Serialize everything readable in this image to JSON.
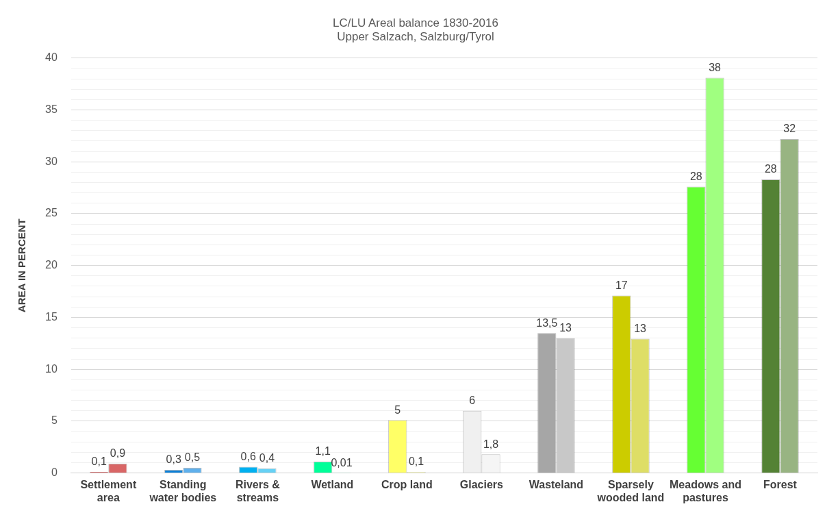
{
  "chart_data": {
    "type": "bar",
    "title": "LC/LU Areal balance 1830-2016",
    "subtitle": "Upper Salzach, Salzburg/Tyrol",
    "ylabel": "AREA IN PERCENT",
    "categories": [
      "Settlement area",
      "Standing water bodies",
      "Rivers & streams",
      "Wetland",
      "Crop land",
      "Glaciers",
      "Wasteland",
      "Sparsely wooded land",
      "Meadows and pastures",
      "Forest"
    ],
    "series": [
      {
        "colors": [
          "#c00000",
          "#0a7fd8",
          "#00b0f0",
          "#00ff99",
          "#ffff66",
          "#f0f0f0",
          "#a6a6a6",
          "#cccc00",
          "#66ff33",
          "#548235"
        ],
        "values": [
          0.1,
          0.3,
          0.6,
          1.1,
          5.1,
          6,
          13.5,
          17.1,
          27.6,
          28.3
        ],
        "value_labels": [
          "0,1",
          "0,3",
          "0,6",
          "1,1",
          "5",
          "6",
          "13,5",
          "17",
          "28",
          "28"
        ]
      },
      {
        "colors": [
          "#d96666",
          "#5fb0ec",
          "#66d1f5",
          "#66ffc2",
          "#ffff99",
          "#f5f5f5",
          "#c8c8c8",
          "#dede66",
          "#a0ff80",
          "#98b482"
        ],
        "values": [
          0.9,
          0.5,
          0.45,
          0.01,
          0.1,
          1.8,
          13,
          12.95,
          38.1,
          32.2
        ],
        "value_labels": [
          "0,9",
          "0,5",
          "0,4",
          "0,01",
          "0,1",
          "1,8",
          "13",
          "13",
          "38",
          "32"
        ]
      }
    ],
    "ylim": [
      0,
      40
    ],
    "yticks": [
      0,
      {
        "value": 1,
        "label": null
      },
      {
        "value": 2,
        "label": null
      },
      {
        "value": 3,
        "label": null
      },
      {
        "value": 4,
        "label": null
      },
      5,
      {
        "value": 6,
        "label": null
      },
      {
        "value": 7,
        "label": null
      },
      {
        "value": 8,
        "label": null
      },
      {
        "value": 9,
        "label": null
      },
      10,
      {
        "value": 11,
        "label": null
      },
      {
        "value": 12,
        "label": null
      },
      {
        "value": 13,
        "label": null
      },
      {
        "value": 14,
        "label": null
      },
      15,
      {
        "value": 16,
        "label": null
      },
      {
        "value": 17,
        "label": null
      },
      {
        "value": 18,
        "label": null
      },
      {
        "value": 19,
        "label": null
      },
      20,
      {
        "value": 21,
        "label": null
      },
      {
        "value": 22,
        "label": null
      },
      {
        "value": 23,
        "label": null
      },
      {
        "value": 24,
        "label": null
      },
      25,
      {
        "value": 26,
        "label": null
      },
      {
        "value": 27,
        "label": null
      },
      {
        "value": 28,
        "label": null
      },
      {
        "value": 29,
        "label": null
      },
      30,
      {
        "value": 31,
        "label": null
      },
      {
        "value": 32,
        "label": null
      },
      {
        "value": 33,
        "label": null
      },
      {
        "value": 34,
        "label": null
      },
      35,
      {
        "value": 36,
        "label": null
      },
      {
        "value": 37,
        "label": null
      },
      {
        "value": 38,
        "label": null
      },
      {
        "value": 39,
        "label": null
      },
      40
    ],
    "grid": "y",
    "legend": false
  }
}
